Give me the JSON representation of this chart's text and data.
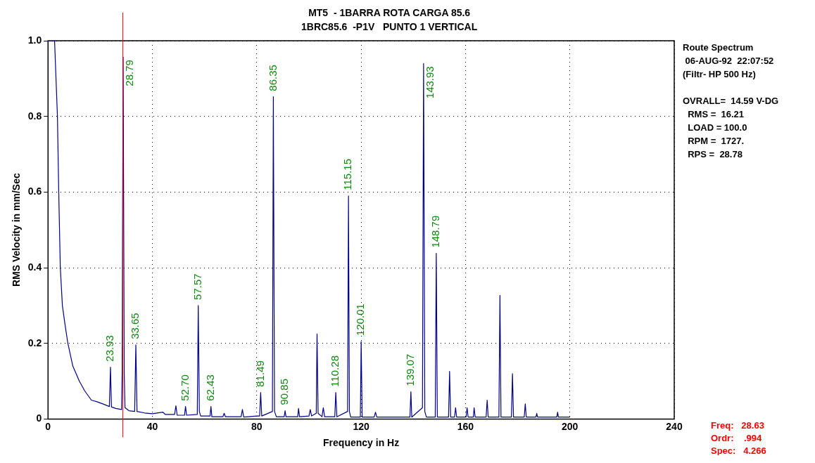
{
  "chart_data": {
    "type": "line",
    "title": "MT5  - 1BARRA ROTA CARGA 85.6",
    "subtitle": "1BRC85.6  -P1V   PUNTO 1 VERTICAL",
    "xlabel": "Frequency in Hz",
    "ylabel": "RMS Velocity in mm/Sec",
    "xlim": [
      0,
      240
    ],
    "xticks": [
      0,
      40,
      80,
      120,
      160,
      200,
      240
    ],
    "ylim": [
      0,
      1
    ],
    "yticks": [
      0,
      0.2,
      0.4,
      0.6,
      0.8,
      {
        "value": 1,
        "label": "1.0"
      }
    ],
    "grid": true,
    "legend": false,
    "marker": "none",
    "line_style": "solid",
    "series": [
      {
        "color": "#00008b",
        "x": [
          0,
          2.5,
          3.6,
          4.1,
          4.7,
          5.5,
          6.5,
          7.6,
          9.5,
          12,
          14,
          16.6,
          19,
          21,
          23.5,
          23.93,
          24.3,
          26,
          28.2,
          28.4,
          28.79,
          29.2,
          29.5,
          31,
          33.2,
          33.65,
          34.1,
          37,
          40,
          44,
          45,
          48.5,
          49,
          49.5,
          52.3,
          52.7,
          53.1,
          57.2,
          57.57,
          58,
          58.5,
          62.1,
          62.43,
          62.8,
          67,
          67.5,
          68,
          74,
          74.5,
          75,
          80,
          81.1,
          81.49,
          81.9,
          86,
          86.35,
          86.8,
          87.5,
          90.5,
          90.85,
          91.2,
          95.7,
          96,
          96.4,
          100,
          100.5,
          101,
          102.8,
          103.1,
          103.5,
          105,
          105.5,
          106,
          109.9,
          110.28,
          110.7,
          114.8,
          115.15,
          115.5,
          116,
          119.7,
          120.01,
          120.4,
          125,
          125.5,
          126,
          132,
          138.7,
          139.07,
          139.4,
          143.5,
          143.93,
          144.4,
          145,
          148.4,
          148.79,
          149.2,
          153.5,
          153.9,
          154.3,
          155.8,
          156.2,
          156.6,
          160.2,
          160.6,
          161,
          163,
          163.3,
          163.7,
          167.9,
          168.3,
          168.7,
          172.8,
          173.2,
          173.6,
          177.6,
          178,
          178.4,
          182.5,
          182.9,
          183.3,
          187,
          187.3,
          187.6,
          195,
          195.3,
          195.6,
          200
        ],
        "values": [
          1,
          1,
          0.8,
          0.6,
          0.4,
          0.3,
          0.25,
          0.2,
          0.14,
          0.1,
          0.075,
          0.05,
          0.045,
          0.04,
          0.033,
          0.137,
          0.032,
          0.028,
          0.025,
          0.12,
          0.957,
          0.12,
          0.03,
          0.022,
          0.02,
          0.196,
          0.02,
          0.016,
          0.014,
          0.018,
          0.012,
          0.012,
          0.035,
          0.01,
          0.01,
          0.033,
          0.01,
          0.012,
          0.3,
          0.02,
          0.008,
          0.008,
          0.033,
          0.006,
          0.006,
          0.015,
          0.006,
          0.006,
          0.025,
          0.005,
          0.008,
          0.008,
          0.07,
          0.008,
          0.02,
          0.852,
          0.02,
          0.006,
          0.006,
          0.022,
          0.006,
          0.006,
          0.028,
          0.006,
          0.008,
          0.025,
          0.008,
          0.015,
          0.225,
          0.015,
          0.006,
          0.03,
          0.006,
          0.006,
          0.07,
          0.006,
          0.02,
          0.59,
          0.02,
          0.005,
          0.005,
          0.205,
          0.005,
          0.005,
          0.018,
          0.005,
          0.005,
          0.005,
          0.072,
          0.005,
          0.03,
          0.94,
          0.02,
          0.005,
          0.005,
          0.438,
          0.005,
          0.005,
          0.126,
          0.005,
          0.005,
          0.03,
          0.005,
          0.005,
          0.03,
          0.005,
          0.005,
          0.03,
          0.005,
          0.005,
          0.05,
          0.005,
          0.005,
          0.327,
          0.005,
          0.005,
          0.12,
          0.005,
          0.005,
          0.04,
          0.005,
          0.005,
          0.015,
          0.005,
          0.005,
          0.018,
          0.005,
          0.005
        ]
      }
    ],
    "ref_lines": [
      {
        "axis": "x",
        "value": 28.63,
        "label": "Freq:   28.63\nOrdr:    .994\nSpec:   4.266",
        "color": "#ff0000"
      }
    ],
    "annotations": [
      {
        "text": "23.93",
        "x": 23.93,
        "y": 0.137
      },
      {
        "text": "28.79",
        "x": 28.79,
        "y": 0.957
      },
      {
        "text": "33.65",
        "x": 33.65,
        "y": 0.196
      },
      {
        "text": "52.70",
        "x": 52.7,
        "y": 0.033
      },
      {
        "text": "57.57",
        "x": 57.57,
        "y": 0.3
      },
      {
        "text": "62.43",
        "x": 62.43,
        "y": 0.033
      },
      {
        "text": "81.49",
        "x": 81.49,
        "y": 0.07
      },
      {
        "text": "86.35",
        "x": 86.35,
        "y": 0.852
      },
      {
        "text": "90.85",
        "x": 90.85,
        "y": 0.022
      },
      {
        "text": "110.28",
        "x": 110.28,
        "y": 0.07
      },
      {
        "text": "115.15",
        "x": 115.15,
        "y": 0.59
      },
      {
        "text": "120.01",
        "x": 120.01,
        "y": 0.205
      },
      {
        "text": "139.07",
        "x": 139.07,
        "y": 0.072
      },
      {
        "text": "143.93",
        "x": 143.93,
        "y": 0.94
      },
      {
        "text": "148.79",
        "x": 148.79,
        "y": 0.438
      },
      "Route Spectrum",
      " 06-AUG-92  22:07:52",
      "(Filtr- HP 500 Hz)",
      "OVRALL=  14.59 V-DG",
      "  RMS =  16.21",
      "  LOAD = 100.0",
      "  RPM =  1727.",
      "  RPS =  28.78"
    ]
  }
}
